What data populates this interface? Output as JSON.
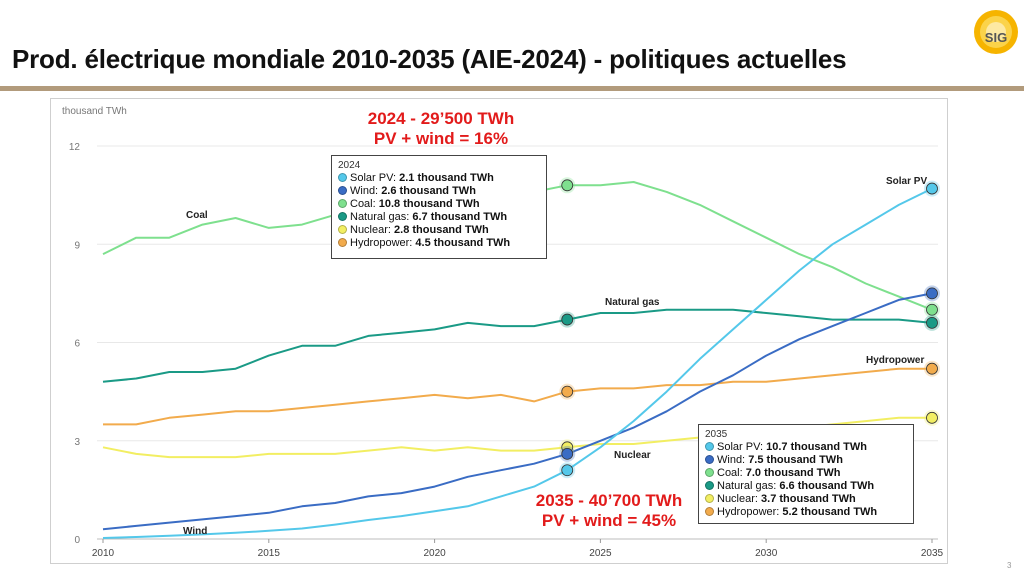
{
  "slide": {
    "title": "Prod. électrique mondiale 2010-2035 (AIE-2024) - politiques actuelles",
    "logo_text": "SIG",
    "page_number": "3"
  },
  "callouts": {
    "top_line1": "2024 - 29’500 TWh",
    "top_line2": "PV + wind = 16%",
    "bottom_line1": "2035 - 40’700 TWh",
    "bottom_line2": "PV + wind = 45%"
  },
  "tooltip_2024": {
    "year": "2024",
    "rows": [
      {
        "label": "Solar PV: ",
        "value": "2.1 thousand TWh",
        "color": "#54c8ea"
      },
      {
        "label": "Wind: ",
        "value": "2.6 thousand TWh",
        "color": "#3a6cc4"
      },
      {
        "label": "Coal: ",
        "value": "10.8 thousand TWh",
        "color": "#7ee08e"
      },
      {
        "label": "Natural gas: ",
        "value": "6.7 thousand TWh",
        "color": "#1a9a86"
      },
      {
        "label": "Nuclear: ",
        "value": "2.8 thousand TWh",
        "color": "#f2ee62"
      },
      {
        "label": "Hydropower: ",
        "value": "4.5 thousand TWh",
        "color": "#f2ab4c"
      }
    ]
  },
  "tooltip_2035": {
    "year": "2035",
    "rows": [
      {
        "label": "Solar PV: ",
        "value": "10.7 thousand TWh",
        "color": "#54c8ea"
      },
      {
        "label": "Wind: ",
        "value": "7.5 thousand TWh",
        "color": "#3a6cc4"
      },
      {
        "label": "Coal: ",
        "value": "7.0 thousand TWh",
        "color": "#7ee08e"
      },
      {
        "label": "Natural gas: ",
        "value": "6.6 thousand TWh",
        "color": "#1a9a86"
      },
      {
        "label": "Nuclear: ",
        "value": "3.7 thousand TWh",
        "color": "#f2ee62"
      },
      {
        "label": "Hydropower: ",
        "value": "5.2 thousand TWh",
        "color": "#f2ab4c"
      }
    ]
  },
  "chart_data": {
    "type": "line",
    "ylabel": "thousand TWh",
    "xlim": [
      2010,
      2035
    ],
    "ylim": [
      0,
      12
    ],
    "xticks": [
      2010,
      2015,
      2020,
      2025,
      2030,
      2035
    ],
    "yticks": [
      0,
      3,
      6,
      9,
      12
    ],
    "grid": true,
    "highlight_years": [
      2024,
      2035
    ],
    "series": [
      {
        "name": "Coal",
        "color": "#7ee08e",
        "x": [
          2010,
          2011,
          2012,
          2013,
          2014,
          2015,
          2016,
          2017,
          2018,
          2019,
          2020,
          2021,
          2022,
          2023,
          2024,
          2025,
          2026,
          2027,
          2028,
          2029,
          2030,
          2031,
          2032,
          2033,
          2034,
          2035
        ],
        "y": [
          8.7,
          9.2,
          9.2,
          9.6,
          9.8,
          9.5,
          9.6,
          9.9,
          10.2,
          10.0,
          9.8,
          10.3,
          10.4,
          10.6,
          10.8,
          10.8,
          10.9,
          10.6,
          10.2,
          9.7,
          9.2,
          8.7,
          8.3,
          7.8,
          7.4,
          7.0
        ]
      },
      {
        "name": "Natural gas",
        "color": "#1a9a86",
        "x": [
          2010,
          2011,
          2012,
          2013,
          2014,
          2015,
          2016,
          2017,
          2018,
          2019,
          2020,
          2021,
          2022,
          2023,
          2024,
          2025,
          2026,
          2027,
          2028,
          2029,
          2030,
          2031,
          2032,
          2033,
          2034,
          2035
        ],
        "y": [
          4.8,
          4.9,
          5.1,
          5.1,
          5.2,
          5.6,
          5.9,
          5.9,
          6.2,
          6.3,
          6.4,
          6.6,
          6.5,
          6.5,
          6.7,
          6.9,
          6.9,
          7.0,
          7.0,
          7.0,
          6.9,
          6.8,
          6.7,
          6.7,
          6.7,
          6.6
        ]
      },
      {
        "name": "Hydropower",
        "color": "#f2ab4c",
        "x": [
          2010,
          2011,
          2012,
          2013,
          2014,
          2015,
          2016,
          2017,
          2018,
          2019,
          2020,
          2021,
          2022,
          2023,
          2024,
          2025,
          2026,
          2027,
          2028,
          2029,
          2030,
          2031,
          2032,
          2033,
          2034,
          2035
        ],
        "y": [
          3.5,
          3.5,
          3.7,
          3.8,
          3.9,
          3.9,
          4.0,
          4.1,
          4.2,
          4.3,
          4.4,
          4.3,
          4.4,
          4.2,
          4.5,
          4.6,
          4.6,
          4.7,
          4.7,
          4.8,
          4.8,
          4.9,
          5.0,
          5.1,
          5.2,
          5.2
        ]
      },
      {
        "name": "Nuclear",
        "color": "#f2ee62",
        "x": [
          2010,
          2011,
          2012,
          2013,
          2014,
          2015,
          2016,
          2017,
          2018,
          2019,
          2020,
          2021,
          2022,
          2023,
          2024,
          2025,
          2026,
          2027,
          2028,
          2029,
          2030,
          2031,
          2032,
          2033,
          2034,
          2035
        ],
        "y": [
          2.8,
          2.6,
          2.5,
          2.5,
          2.5,
          2.6,
          2.6,
          2.6,
          2.7,
          2.8,
          2.7,
          2.8,
          2.7,
          2.7,
          2.8,
          2.9,
          2.9,
          3.0,
          3.1,
          3.2,
          3.3,
          3.4,
          3.5,
          3.6,
          3.7,
          3.7
        ]
      },
      {
        "name": "Wind",
        "color": "#3a6cc4",
        "x": [
          2010,
          2011,
          2012,
          2013,
          2014,
          2015,
          2016,
          2017,
          2018,
          2019,
          2020,
          2021,
          2022,
          2023,
          2024,
          2025,
          2026,
          2027,
          2028,
          2029,
          2030,
          2031,
          2032,
          2033,
          2034,
          2035
        ],
        "y": [
          0.3,
          0.4,
          0.5,
          0.6,
          0.7,
          0.8,
          1.0,
          1.1,
          1.3,
          1.4,
          1.6,
          1.9,
          2.1,
          2.3,
          2.6,
          3.0,
          3.4,
          3.9,
          4.5,
          5.0,
          5.6,
          6.1,
          6.5,
          6.9,
          7.3,
          7.5
        ]
      },
      {
        "name": "Solar PV",
        "color": "#54c8ea",
        "x": [
          2010,
          2011,
          2012,
          2013,
          2014,
          2015,
          2016,
          2017,
          2018,
          2019,
          2020,
          2021,
          2022,
          2023,
          2024,
          2025,
          2026,
          2027,
          2028,
          2029,
          2030,
          2031,
          2032,
          2033,
          2034,
          2035
        ],
        "y": [
          0.03,
          0.06,
          0.1,
          0.14,
          0.19,
          0.25,
          0.32,
          0.44,
          0.58,
          0.7,
          0.85,
          1.0,
          1.3,
          1.6,
          2.1,
          2.8,
          3.6,
          4.5,
          5.5,
          6.4,
          7.3,
          8.2,
          9.0,
          9.6,
          10.2,
          10.7
        ]
      }
    ],
    "series_labels": [
      {
        "text": "Coal",
        "series": "Coal"
      },
      {
        "text": "Natural gas",
        "series": "Natural gas"
      },
      {
        "text": "Hydropower",
        "series": "Hydropower"
      },
      {
        "text": "Nuclear",
        "series": "Nuclear"
      },
      {
        "text": "Wind",
        "series": "Wind"
      },
      {
        "text": "Solar PV",
        "series": "Solar PV"
      }
    ]
  }
}
